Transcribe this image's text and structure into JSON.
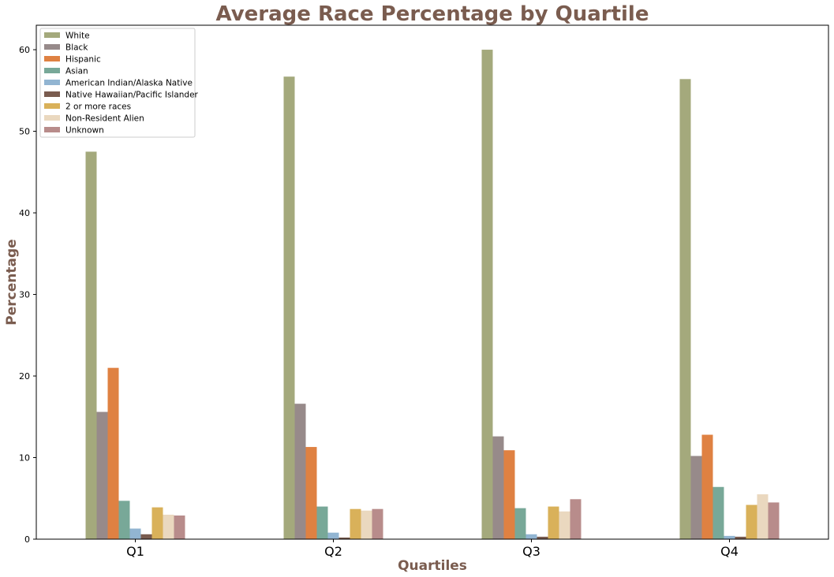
{
  "chart_data": {
    "type": "bar",
    "title": "Average Race Percentage by Quartile",
    "xlabel": "Quartiles",
    "ylabel": "Percentage",
    "categories": [
      "Q1",
      "Q2",
      "Q3",
      "Q4"
    ],
    "ylim": [
      0,
      63
    ],
    "yticks": [
      0,
      10,
      20,
      30,
      40,
      50,
      60
    ],
    "grid": false,
    "legend_position": "top-left",
    "series": [
      {
        "name": "White",
        "color": "#a4a97c",
        "values": [
          47.5,
          56.7,
          60.0,
          56.4
        ]
      },
      {
        "name": "Black",
        "color": "#978a8a",
        "values": [
          15.6,
          16.6,
          12.6,
          10.2
        ]
      },
      {
        "name": "Hispanic",
        "color": "#df8142",
        "values": [
          21.0,
          11.3,
          10.9,
          12.8
        ]
      },
      {
        "name": "Asian",
        "color": "#78a898",
        "values": [
          4.7,
          4.0,
          3.8,
          6.4
        ]
      },
      {
        "name": "American Indian/Alaska Native",
        "color": "#92b5d2",
        "values": [
          1.3,
          0.8,
          0.6,
          0.4
        ]
      },
      {
        "name": "Native Hawaiian/Pacific Islander",
        "color": "#7a5c4f",
        "values": [
          0.6,
          0.2,
          0.3,
          0.3
        ]
      },
      {
        "name": "2 or more races",
        "color": "#d9b15a",
        "values": [
          3.9,
          3.7,
          4.0,
          4.2
        ]
      },
      {
        "name": "Non-Resident Alien",
        "color": "#ead8bf",
        "values": [
          3.0,
          3.5,
          3.4,
          5.5
        ]
      },
      {
        "name": "Unknown",
        "color": "#b88c8b",
        "values": [
          2.9,
          3.7,
          4.9,
          4.5
        ]
      }
    ]
  }
}
